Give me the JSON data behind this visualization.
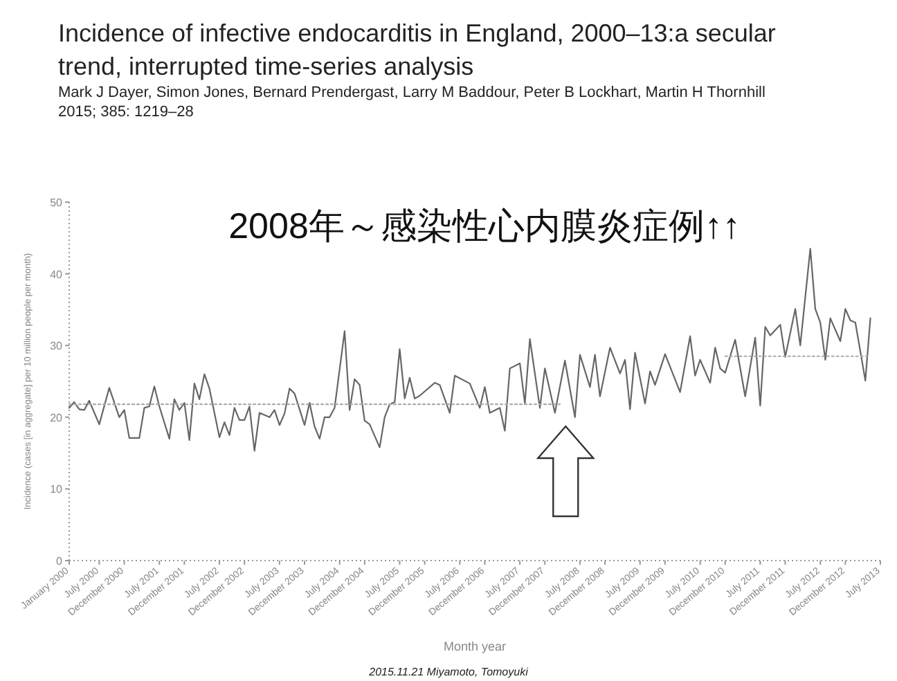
{
  "chart_data": {
    "type": "line",
    "title": "Incidence of infective endocarditis in England, 2000–13:a secular trend, interrupted time-series analysis",
    "subtitle": "Mark J Dayer, Simon Jones, Bernard Prendergast, Larry M Baddour, Peter B Lockhart, Martin H Thornhill",
    "xlabel": "Month year",
    "ylabel": "Incidence (cases [in aggregate] per 10 million people per month)",
    "annotations": [
      "2015; 385: 1219–28",
      "2008年～感染性心内膜炎症例↑↑",
      "2015.11.21 Miyamoto, Tomoyuki"
    ],
    "xlim": [
      "2000-01",
      "2013-07"
    ],
    "ylim": [
      0,
      50
    ],
    "yticks": [
      0,
      10,
      20,
      30,
      40,
      50
    ],
    "xticks": [
      {
        "value": "2000-01",
        "label": "January 2000"
      },
      {
        "value": "2000-07",
        "label": "July 2000"
      },
      {
        "value": "2000-12",
        "label": "December 2000"
      },
      {
        "value": "2001-07",
        "label": "July 2001"
      },
      {
        "value": "2001-12",
        "label": "December 2001"
      },
      {
        "value": "2002-07",
        "label": "July 2002"
      },
      {
        "value": "2002-12",
        "label": "December 2002"
      },
      {
        "value": "2003-07",
        "label": "July 2003"
      },
      {
        "value": "2003-12",
        "label": "December 2003"
      },
      {
        "value": "2004-07",
        "label": "July 2004"
      },
      {
        "value": "2004-12",
        "label": "December 2004"
      },
      {
        "value": "2005-07",
        "label": "July 2005"
      },
      {
        "value": "2005-12",
        "label": "December 2005"
      },
      {
        "value": "2006-07",
        "label": "July 2006"
      },
      {
        "value": "2006-12",
        "label": "December 2006"
      },
      {
        "value": "2007-07",
        "label": "July 2007"
      },
      {
        "value": "2007-12",
        "label": "December 2007"
      },
      {
        "value": "2008-07",
        "label": "July 2008"
      },
      {
        "value": "2008-12",
        "label": "December 2008"
      },
      {
        "value": "2009-07",
        "label": "July 2009"
      },
      {
        "value": "2009-12",
        "label": "December 2009"
      },
      {
        "value": "2010-07",
        "label": "July 2010"
      },
      {
        "value": "2010-12",
        "label": "December 2010"
      },
      {
        "value": "2011-07",
        "label": "July 2011"
      },
      {
        "value": "2011-12",
        "label": "December 2011"
      },
      {
        "value": "2012-07",
        "label": "July 2012"
      },
      {
        "value": "2012-12",
        "label": "December 2012"
      },
      {
        "value": "2013-07",
        "label": "July 2013"
      }
    ],
    "series": [
      {
        "type": "line",
        "color": "#666666",
        "line_style": "solid",
        "x": [
          "2000-01",
          "2000-02",
          "2000-03",
          "2000-04",
          "2000-05",
          "2000-07",
          "2000-09",
          "2000-11",
          "2000-12",
          "2001-01",
          "2001-03",
          "2001-04",
          "2001-05",
          "2001-06",
          "2001-07",
          "2001-09",
          "2001-10",
          "2001-11",
          "2001-12",
          "2002-01",
          "2002-02",
          "2002-03",
          "2002-04",
          "2002-05",
          "2002-07",
          "2002-08",
          "2002-09",
          "2002-10",
          "2002-11",
          "2002-12",
          "2003-01",
          "2003-02",
          "2003-03",
          "2003-05",
          "2003-06",
          "2003-07",
          "2003-08",
          "2003-09",
          "2003-10",
          "2003-12",
          "2004-01",
          "2004-02",
          "2004-03",
          "2004-04",
          "2004-05",
          "2004-06",
          "2004-08",
          "2004-09",
          "2004-10",
          "2004-11",
          "2004-12",
          "2005-01",
          "2005-03",
          "2005-04",
          "2005-05",
          "2005-06",
          "2005-07",
          "2005-08",
          "2005-09",
          "2005-10",
          "2005-11",
          "2006-02",
          "2006-03",
          "2006-05",
          "2006-06",
          "2006-09",
          "2006-11",
          "2006-12",
          "2007-01",
          "2007-03",
          "2007-04",
          "2007-05",
          "2007-07",
          "2007-08",
          "2007-09",
          "2007-11",
          "2007-12",
          "2008-02",
          "2008-04",
          "2008-06",
          "2008-07",
          "2008-09",
          "2008-10",
          "2008-11",
          "2009-01",
          "2009-03",
          "2009-04",
          "2009-05",
          "2009-06",
          "2009-08",
          "2009-09",
          "2009-10",
          "2009-12",
          "2010-03",
          "2010-05",
          "2010-06",
          "2010-07",
          "2010-09",
          "2010-10",
          "2010-11",
          "2010-12",
          "2011-02",
          "2011-04",
          "2011-06",
          "2011-07",
          "2011-08",
          "2011-09",
          "2011-11",
          "2011-12",
          "2012-02",
          "2012-03",
          "2012-05",
          "2012-06",
          "2012-07",
          "2012-08",
          "2012-09",
          "2012-11",
          "2012-12",
          "2013-01",
          "2013-02",
          "2013-04",
          "2013-05"
        ],
        "values": [
          21.3,
          22.1,
          21.1,
          21.0,
          22.3,
          19.0,
          24.1,
          20.0,
          21.0,
          17.1,
          17.1,
          21.3,
          21.5,
          24.3,
          21.5,
          17.0,
          22.5,
          21.0,
          22.0,
          16.8,
          24.7,
          22.5,
          26.0,
          24.0,
          17.2,
          19.3,
          17.5,
          21.3,
          19.6,
          19.6,
          21.5,
          15.3,
          20.6,
          20.0,
          21.0,
          18.9,
          20.5,
          24.0,
          23.3,
          18.9,
          22.0,
          18.7,
          17.0,
          20.0,
          20.0,
          21.3,
          32.0,
          21.0,
          25.3,
          24.5,
          19.5,
          19.0,
          15.8,
          20.0,
          21.8,
          22.1,
          29.5,
          22.6,
          25.5,
          22.6,
          23.0,
          24.8,
          24.5,
          20.6,
          25.8,
          24.7,
          21.3,
          24.2,
          20.6,
          21.3,
          18.1,
          26.8,
          27.5,
          21.9,
          30.9,
          21.3,
          26.8,
          20.6,
          27.9,
          20.0,
          28.7,
          24.2,
          28.7,
          22.9,
          29.7,
          26.1,
          28.0,
          21.1,
          29.0,
          21.9,
          26.4,
          24.5,
          28.8,
          23.5,
          31.3,
          25.8,
          28.0,
          24.8,
          29.7,
          26.8,
          26.2,
          30.8,
          22.9,
          31.1,
          21.6,
          32.6,
          31.4,
          32.9,
          28.4,
          35.1,
          30.0,
          43.5,
          35.1,
          33.2,
          28.0,
          33.8,
          30.6,
          35.1,
          33.5,
          33.2,
          25.1,
          33.8
        ]
      },
      {
        "type": "line",
        "color": "#aaaaaa",
        "line_style": "dotted",
        "x": [
          "2000-01",
          "2008-03"
        ],
        "values": [
          21.8,
          21.8
        ]
      },
      {
        "type": "line",
        "color": "#aaaaaa",
        "line_style": "dotted",
        "x": [
          "2010-12",
          "2013-05"
        ],
        "values": [
          28.5,
          28.5
        ]
      }
    ]
  }
}
